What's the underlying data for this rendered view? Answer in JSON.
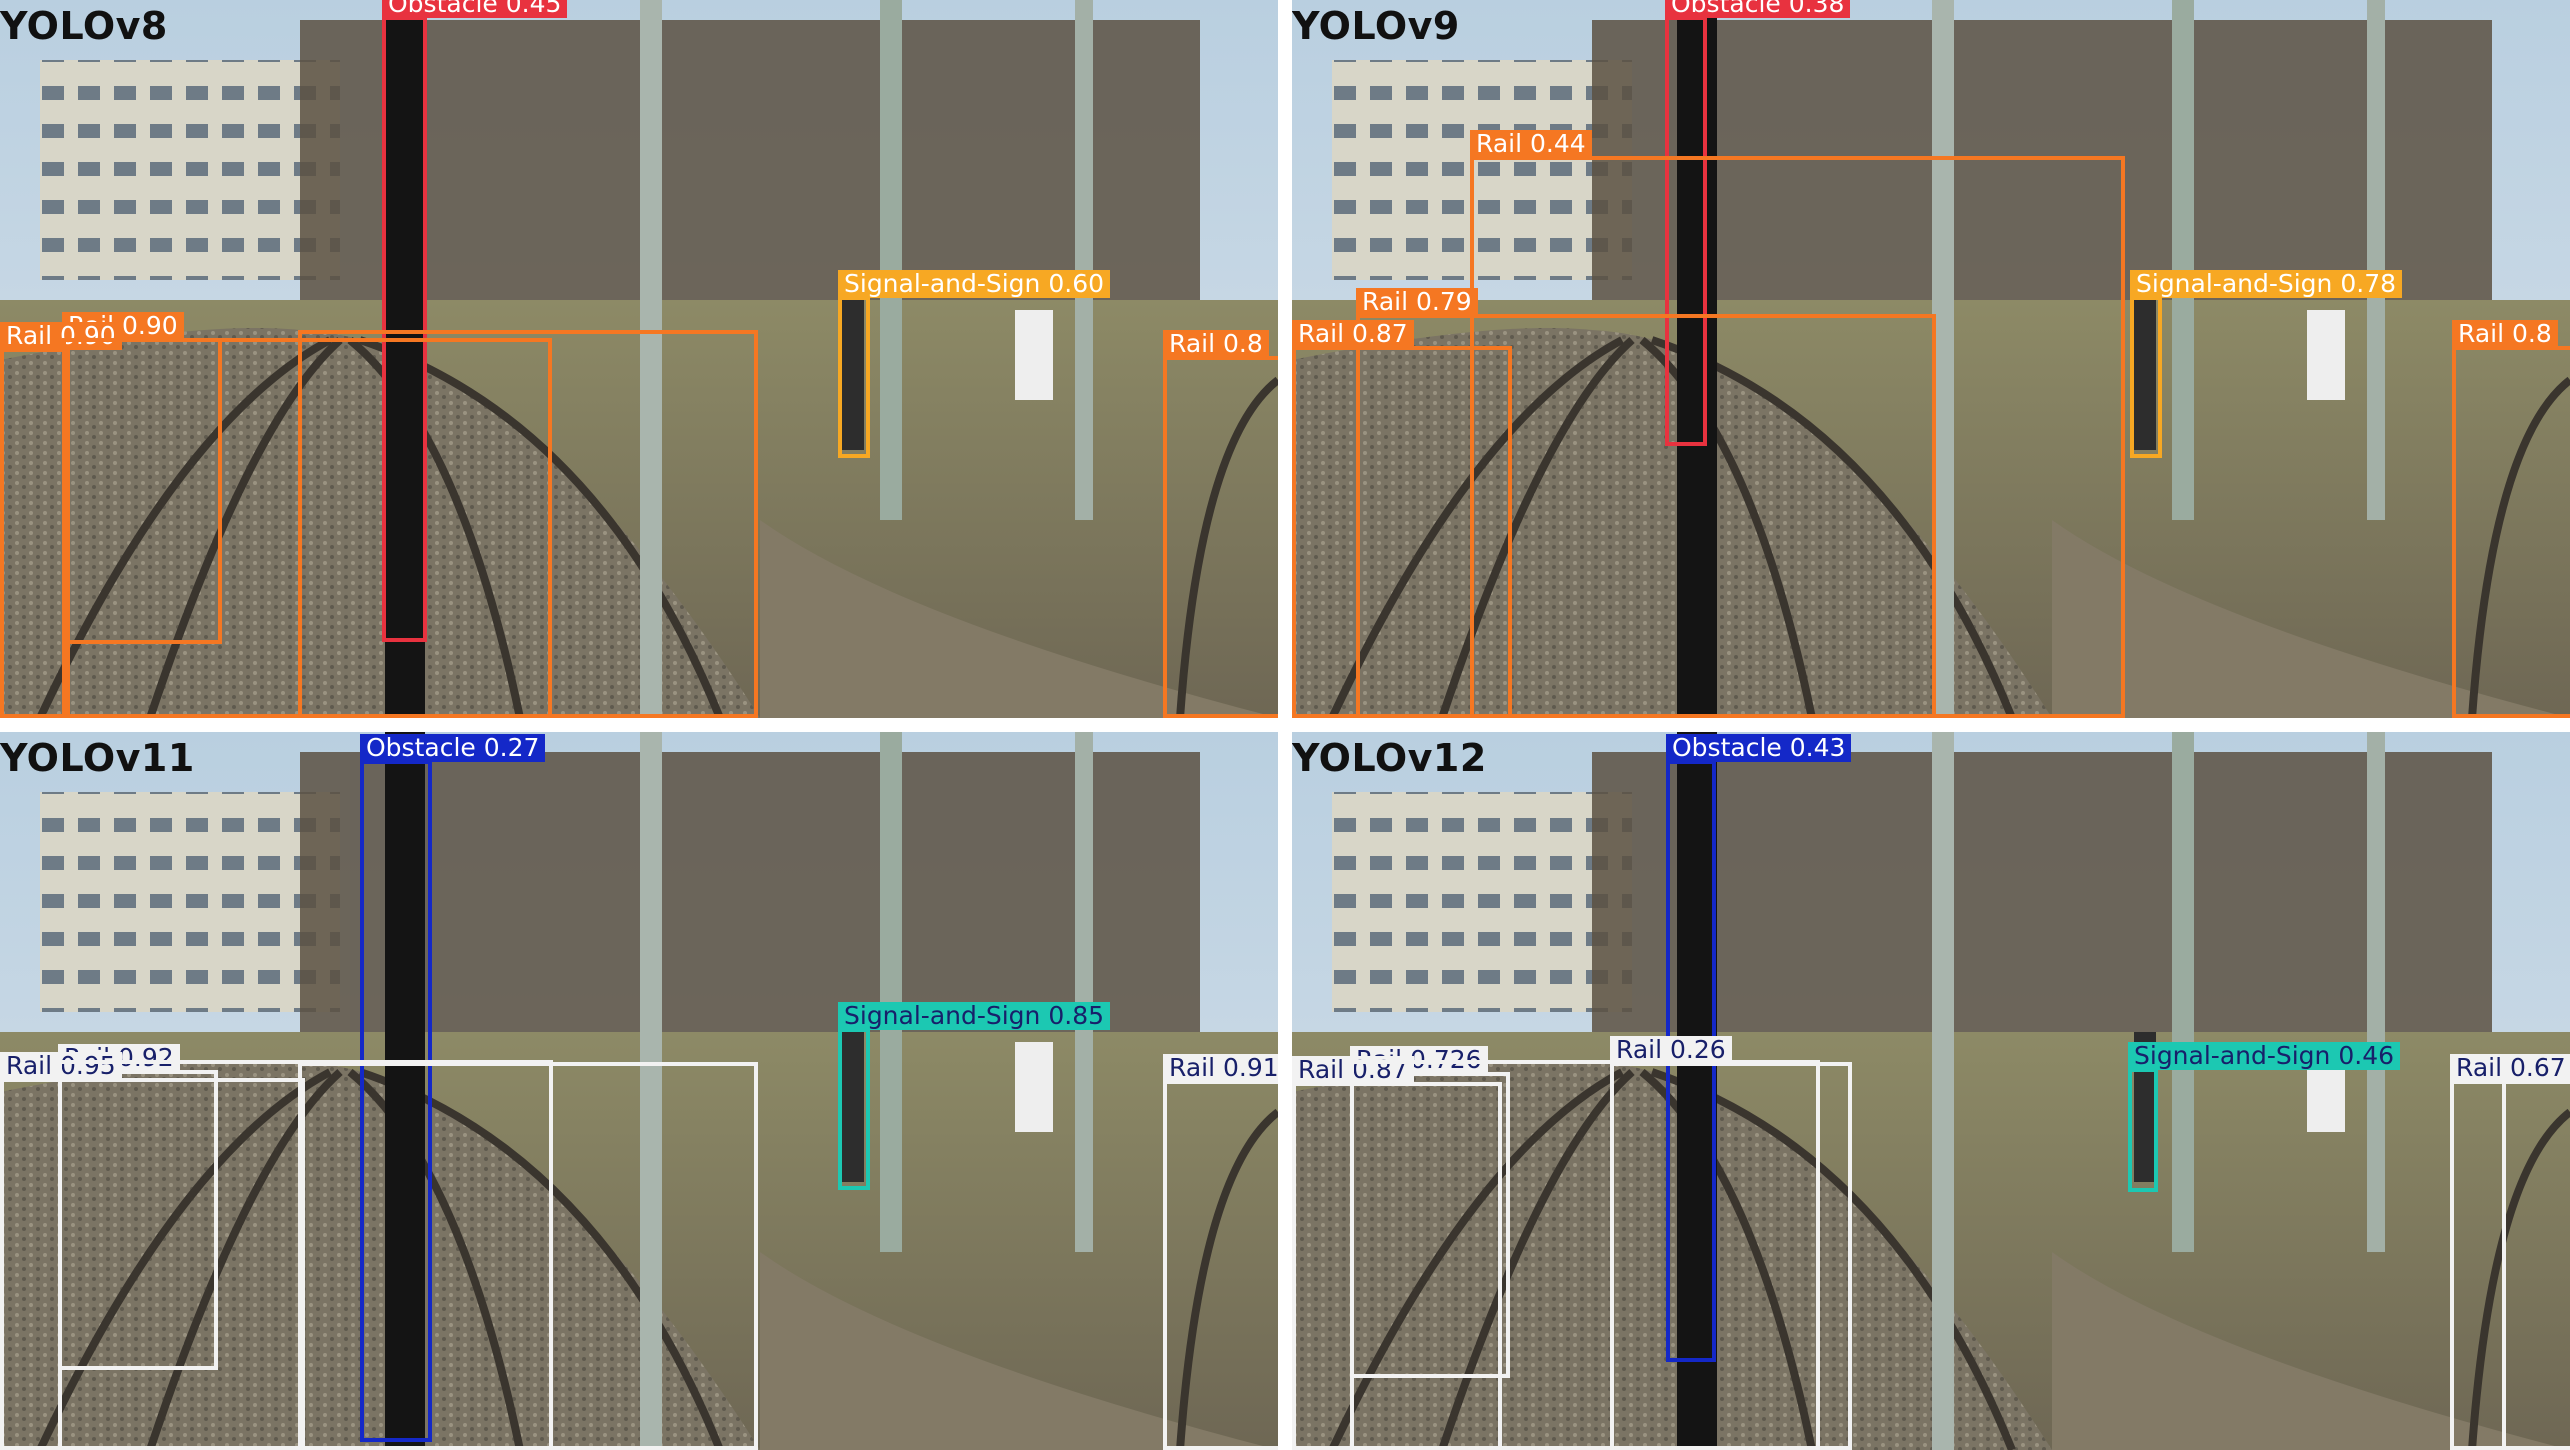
{
  "colors": {
    "obstacle_v8_v9": "#e8323f",
    "obstacle_v11_v12": "#1428c8",
    "rail_v8_v9": "#f57722",
    "rail_v11_v12": "#f2f2f2",
    "signal_v8_v9": "#f7a823",
    "signal_v11_v12": "#1cc8b2"
  },
  "panels": [
    {
      "model": "YOLOv8",
      "detections": [
        {
          "name": "obstacle-box",
          "label": "Obstacle 0.45",
          "kind": "obstacle"
        },
        {
          "name": "rail-box",
          "label": "Rail 0.90",
          "kind": "rail"
        },
        {
          "name": "rail-box",
          "label": "Rail 0.90",
          "kind": "rail"
        },
        {
          "name": "rail-box",
          "label": "",
          "kind": "rail"
        },
        {
          "name": "rail-box",
          "label": "",
          "kind": "rail"
        },
        {
          "name": "rail-box",
          "label": "Rail 0.8",
          "kind": "rail"
        },
        {
          "name": "signal-box",
          "label": "Signal-and-Sign 0.60",
          "kind": "signal"
        }
      ]
    },
    {
      "model": "YOLOv9",
      "detections": [
        {
          "name": "obstacle-box",
          "label": "Obstacle 0.38",
          "kind": "obstacle"
        },
        {
          "name": "rail-box",
          "label": "Rail 0.44",
          "kind": "rail"
        },
        {
          "name": "rail-box",
          "label": "Rail 0.79",
          "kind": "rail"
        },
        {
          "name": "rail-box",
          "label": "Rail 0.87",
          "kind": "rail"
        },
        {
          "name": "rail-box",
          "label": "Rail 0.8",
          "kind": "rail"
        },
        {
          "name": "signal-box",
          "label": "Signal-and-Sign 0.78",
          "kind": "signal"
        }
      ]
    },
    {
      "model": "YOLOv11",
      "detections": [
        {
          "name": "obstacle-box",
          "label": "Obstacle 0.27",
          "kind": "obstacle"
        },
        {
          "name": "rail-box",
          "label": "Rail 0.92",
          "kind": "rail"
        },
        {
          "name": "rail-box",
          "label": "Rail 0.95",
          "kind": "rail"
        },
        {
          "name": "rail-box",
          "label": "",
          "kind": "rail"
        },
        {
          "name": "rail-box",
          "label": "",
          "kind": "rail"
        },
        {
          "name": "rail-box",
          "label": "Rail 0.91",
          "kind": "rail"
        },
        {
          "name": "signal-box",
          "label": "Signal-and-Sign 0.85",
          "kind": "signal"
        }
      ]
    },
    {
      "model": "YOLOv12",
      "detections": [
        {
          "name": "obstacle-box",
          "label": "Obstacle 0.43",
          "kind": "obstacle"
        },
        {
          "name": "rail-box",
          "label": "Rail 0.726",
          "kind": "rail"
        },
        {
          "name": "rail-box",
          "label": "Rail 0.87",
          "kind": "rail"
        },
        {
          "name": "rail-box",
          "label": "Rail 0.26",
          "kind": "rail"
        },
        {
          "name": "rail-box",
          "label": "",
          "kind": "rail"
        },
        {
          "name": "rail-box",
          "label": "Rail 0.67",
          "kind": "rail"
        },
        {
          "name": "rail-box",
          "label": "",
          "kind": "rail"
        },
        {
          "name": "signal-box",
          "label": "Signal-and-Sign 0.46",
          "kind": "signal"
        }
      ]
    }
  ]
}
